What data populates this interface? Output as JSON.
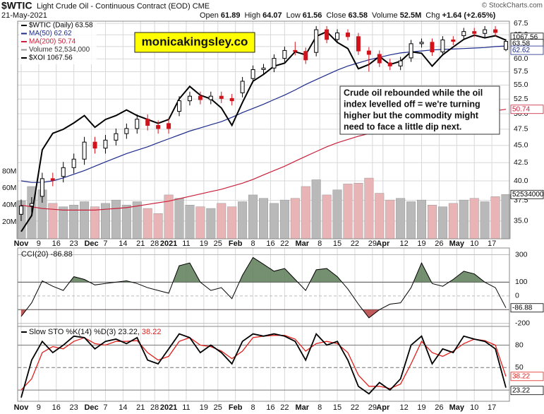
{
  "chart_data": {
    "type": "candlestick",
    "symbol": "$WTIC",
    "title": "Light Crude Oil - Continuous Contract (EOD) CME",
    "date": "21-May-2021",
    "source": "© StockCharts.com",
    "stats": [
      {
        "name": "Open",
        "value": "61.89"
      },
      {
        "name": "High",
        "value": "64.07"
      },
      {
        "name": "Low",
        "value": "61.56"
      },
      {
        "name": "Close",
        "value": "63.58"
      },
      {
        "name": "Volume",
        "value": "52.5M"
      },
      {
        "name": "Chg",
        "value": "+1.64 (+2.65%)"
      }
    ],
    "watermark": "monicakingsley.co",
    "annotation": [
      "Crude oil rebounded while the oil",
      "index levelled off = we're turning",
      "higher but the commodity might",
      "need to face a little dip next."
    ],
    "x": [
      0,
      3,
      6,
      9,
      12,
      15,
      18,
      21,
      24,
      27,
      30,
      33,
      36,
      39,
      42,
      45,
      48,
      51,
      54,
      57,
      60,
      63,
      66,
      69,
      72,
      75,
      78,
      81,
      84,
      87,
      90,
      93,
      96,
      99,
      102,
      105,
      108,
      111,
      114,
      117,
      120,
      123,
      126,
      129,
      132,
      135,
      138
    ],
    "xlim": [
      -1,
      139
    ],
    "xticks": [
      {
        "value": 0,
        "label": "Nov"
      },
      {
        "value": 5,
        "label": "9"
      },
      {
        "value": 10,
        "label": "16"
      },
      {
        "value": 15,
        "label": "23"
      },
      {
        "value": 20,
        "label": "Dec"
      },
      {
        "value": 24,
        "label": "7"
      },
      {
        "value": 29,
        "label": "14"
      },
      {
        "value": 34,
        "label": "21"
      },
      {
        "value": 38,
        "label": "28"
      },
      {
        "value": 42,
        "label": "2021"
      },
      {
        "value": 47,
        "label": "11"
      },
      {
        "value": 52,
        "label": "19"
      },
      {
        "value": 56,
        "label": "25"
      },
      {
        "value": 61,
        "label": "Feb"
      },
      {
        "value": 66,
        "label": "8"
      },
      {
        "value": 71,
        "label": "16"
      },
      {
        "value": 75,
        "label": "22"
      },
      {
        "value": 80,
        "label": "Mar"
      },
      {
        "value": 85,
        "label": "8"
      },
      {
        "value": 90,
        "label": "15"
      },
      {
        "value": 95,
        "label": "22"
      },
      {
        "value": 100,
        "label": "29"
      },
      {
        "value": 103,
        "label": "Apr"
      },
      {
        "value": 109,
        "label": "12"
      },
      {
        "value": 114,
        "label": "19"
      },
      {
        "value": 119,
        "label": "26"
      },
      {
        "value": 124,
        "label": "May"
      },
      {
        "value": 129,
        "label": "10"
      },
      {
        "value": 134,
        "label": "17"
      }
    ],
    "log_scale": true,
    "ylim": [
      33,
      68
    ],
    "yticks": [
      {
        "value": 35,
        "label": "35.0"
      },
      37.5,
      {
        "value": 40,
        "label": "40.0"
      },
      42.5,
      {
        "value": 45,
        "label": "45.0"
      },
      47.5,
      {
        "value": 50,
        "label": "50.0"
      },
      52.5,
      {
        "value": 55,
        "label": "55.0"
      },
      57.5,
      {
        "value": 60,
        "label": "60.0"
      },
      62.5,
      {
        "value": 65,
        "label": "65.0"
      },
      67.5
    ],
    "grid": true,
    "price_name": "$WTIC (Daily) 63.58",
    "up_color": "#000000",
    "down_color": "#d0121b",
    "open": [
      35.8,
      36.8,
      38.0,
      40.3,
      40.6,
      41.8,
      43.0,
      45.5,
      44.6,
      45.8,
      46.8,
      47.6,
      49.1,
      48.1,
      48.4,
      50.4,
      52.2,
      53.0,
      52.4,
      53.0,
      52.6,
      53.6,
      56.2,
      57.9,
      58.2,
      60.1,
      61.7,
      61.5,
      61.3,
      66.1,
      64.0,
      65.4,
      64.6,
      61.6,
      60.9,
      59.2,
      58.6,
      60.2,
      63.1,
      63.4,
      61.4,
      63.9,
      64.8,
      65.7,
      65.3,
      66.1,
      61.89
    ],
    "high": [
      37.6,
      37.9,
      41.1,
      41.1,
      42.6,
      43.8,
      46.3,
      46.3,
      46.6,
      47.6,
      48.4,
      49.9,
      49.9,
      48.9,
      49.2,
      53.0,
      53.8,
      53.8,
      53.8,
      53.8,
      53.4,
      56.5,
      58.7,
      59.0,
      60.9,
      62.5,
      63.5,
      62.3,
      66.9,
      66.9,
      66.2,
      66.2,
      65.4,
      62.4,
      61.7,
      60.0,
      60.4,
      63.9,
      64.2,
      64.2,
      64.7,
      64.7,
      66.5,
      66.5,
      66.9,
      66.9,
      64.07
    ],
    "low": [
      35.0,
      36.0,
      37.2,
      39.3,
      39.8,
      41.0,
      42.2,
      43.8,
      43.8,
      45.0,
      46.0,
      46.8,
      47.3,
      46.8,
      46.8,
      49.6,
      51.4,
      51.6,
      51.6,
      51.8,
      51.4,
      52.8,
      55.4,
      57.1,
      57.4,
      59.3,
      60.7,
      59.0,
      60.5,
      63.2,
      63.2,
      63.8,
      60.8,
      57.5,
      58.4,
      57.8,
      57.8,
      59.4,
      62.3,
      60.6,
      60.6,
      62.8,
      64.0,
      64.5,
      64.5,
      64.7,
      61.56
    ],
    "close": [
      36.8,
      37.1,
      40.3,
      40.1,
      41.8,
      43.0,
      45.5,
      44.6,
      45.8,
      46.8,
      47.6,
      49.1,
      48.1,
      47.6,
      47.6,
      52.2,
      53.0,
      52.4,
      53.0,
      52.6,
      52.2,
      55.7,
      57.9,
      58.2,
      60.1,
      61.7,
      61.5,
      59.8,
      66.1,
      64.0,
      65.4,
      64.6,
      61.6,
      60.9,
      59.2,
      58.6,
      59.6,
      63.1,
      63.4,
      61.4,
      63.9,
      63.6,
      65.7,
      65.3,
      66.1,
      65.5,
      63.58
    ],
    "y2lim": [
      577,
      1132
    ],
    "overlays": [
      {
        "name": "MA(50) 62.62",
        "color": "#1c2a8a",
        "values": [
          40.0,
          39.8,
          39.8,
          40.0,
          40.4,
          40.9,
          41.4,
          42.0,
          42.6,
          43.2,
          43.8,
          44.3,
          44.8,
          45.4,
          46.0,
          46.6,
          47.2,
          47.7,
          48.2,
          48.7,
          49.4,
          50.2,
          50.9,
          51.6,
          52.4,
          53.2,
          54.1,
          55.1,
          56.0,
          56.9,
          57.8,
          58.6,
          59.2,
          59.8,
          60.3,
          60.8,
          61.2,
          61.4,
          61.6,
          61.8,
          61.9,
          62.0,
          62.1,
          62.2,
          62.3,
          62.5,
          62.62
        ]
      },
      {
        "name": "MA(200) 50.74",
        "color": "#c8203a",
        "values": [
          36.9,
          36.7,
          36.5,
          36.4,
          36.3,
          36.3,
          36.3,
          36.3,
          36.4,
          36.5,
          36.6,
          36.8,
          37.0,
          37.2,
          37.4,
          37.7,
          38.0,
          38.3,
          38.6,
          38.9,
          39.3,
          39.7,
          40.2,
          40.8,
          41.4,
          42.0,
          42.7,
          43.4,
          44.1,
          44.8,
          45.4,
          45.9,
          46.4,
          46.8,
          47.2,
          47.6,
          47.9,
          48.2,
          48.5,
          48.8,
          49.1,
          49.4,
          49.7,
          50.0,
          50.2,
          50.5,
          50.74
        ]
      },
      {
        "name": "$XOI 1067.56",
        "color": "#000000",
        "axis": "y2",
        "values": [
          590,
          620,
          760,
          800,
          810,
          826,
          845,
          815,
          835,
          845,
          860,
          845,
          835,
          825,
          835,
          890,
          925,
          900,
          890,
          865,
          820,
          880,
          940,
          960,
          985,
          994,
          1030,
          1020,
          1080,
          1096,
          1060,
          1040,
          977,
          990,
          1015,
          990,
          1000,
          1030,
          1025,
          985,
          1020,
          1045,
          1070,
          1084,
          1075,
          1082,
          1067.56
        ]
      }
    ],
    "volume": {
      "name": "Volume 52,534,000",
      "ylim": [
        0,
        258000000
      ],
      "yticks": [
        {
          "value": 20000000,
          "label": "20M"
        },
        {
          "value": 40000000,
          "label": "40M"
        },
        {
          "value": 60000000,
          "label": "60M"
        },
        {
          "value": 80000000,
          "label": "80M"
        }
      ],
      "up_color": "#b9b9b9",
      "down_color": "#e9b4b6",
      "values": [
        45000000,
        62000000,
        58000000,
        42000000,
        38000000,
        40000000,
        44000000,
        38000000,
        42000000,
        46000000,
        40000000,
        44000000,
        36000000,
        30000000,
        52000000,
        48000000,
        40000000,
        38000000,
        36000000,
        42000000,
        38000000,
        44000000,
        52000000,
        48000000,
        42000000,
        46000000,
        48000000,
        62000000,
        70000000,
        52000000,
        58000000,
        65000000,
        66000000,
        72000000,
        54000000,
        46000000,
        48000000,
        44000000,
        46000000,
        40000000,
        38000000,
        42000000,
        46000000,
        48000000,
        44000000,
        50000000,
        52534000
      ]
    },
    "cci": {
      "name": "CCI(20) -86.88",
      "ylim": [
        -222,
        349
      ],
      "yticks": [
        -200,
        0,
        100,
        300
      ],
      "bands": [
        100,
        -100
      ],
      "color": "#000000",
      "over_color": "#5d7d57",
      "under_color": "#b5413f",
      "values": [
        -150,
        -50,
        110,
        70,
        40,
        140,
        120,
        80,
        90,
        100,
        110,
        90,
        60,
        40,
        20,
        220,
        240,
        100,
        40,
        60,
        -20,
        150,
        280,
        230,
        180,
        200,
        120,
        40,
        190,
        200,
        140,
        50,
        -60,
        -160,
        -100,
        -60,
        -50,
        60,
        240,
        90,
        70,
        120,
        180,
        160,
        100,
        60,
        -86.88
      ]
    },
    "sto": {
      "name": "Slow STO %K(14) %D(3) 23.22,",
      "ylim": [
        5,
        105
      ],
      "yticks": [
        20,
        50,
        80
      ],
      "k": {
        "color": "#000000",
        "values": [
          10,
          60,
          85,
          70,
          80,
          92,
          90,
          75,
          85,
          88,
          82,
          90,
          60,
          55,
          75,
          95,
          90,
          70,
          80,
          70,
          55,
          85,
          95,
          92,
          95,
          92,
          85,
          60,
          95,
          80,
          85,
          60,
          25,
          15,
          30,
          20,
          35,
          80,
          92,
          55,
          75,
          70,
          92,
          88,
          85,
          75,
          23.22
        ]
      },
      "d": {
        "color": "#e0201c",
        "values": [
          20,
          35,
          70,
          78,
          75,
          85,
          90,
          82,
          80,
          85,
          85,
          86,
          70,
          60,
          65,
          85,
          90,
          80,
          78,
          72,
          62,
          72,
          90,
          92,
          93,
          93,
          88,
          72,
          82,
          85,
          82,
          70,
          40,
          25,
          25,
          22,
          28,
          55,
          85,
          70,
          65,
          72,
          82,
          88,
          86,
          80,
          38.22
        ]
      }
    }
  }
}
